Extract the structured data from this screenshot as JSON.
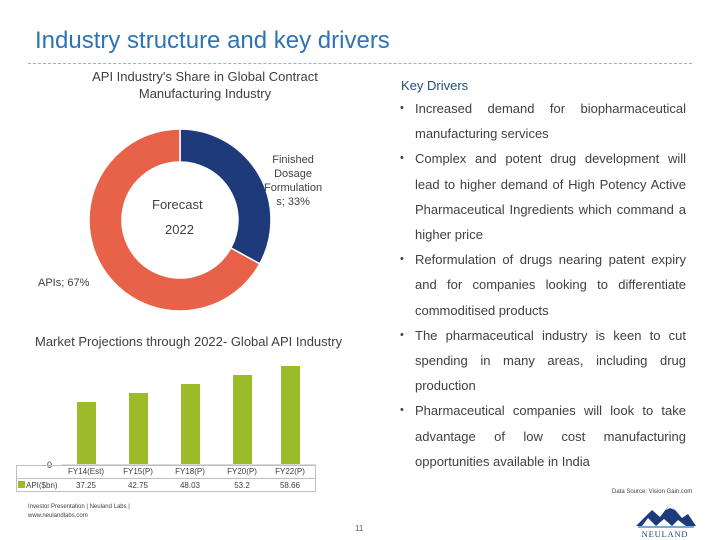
{
  "slide": {
    "title": "Industry structure and key drivers",
    "page_number": "11"
  },
  "donut": {
    "heading_line1": "API Industry's Share in Global Contract",
    "heading_line2": "Manufacturing Industry",
    "center_line1": "Forecast",
    "center_line2": "2022",
    "colors": {
      "finished_dosage": "#1f3a7a",
      "apis": "#e8624a"
    }
  },
  "key_drivers": {
    "heading": "Key Drivers",
    "items": [
      "Increased demand for biopharmaceutical manufacturing services",
      "Complex and potent drug development will lead to higher demand of High Potency Active Pharmaceutical Ingredients which command a higher price",
      "Reformulation of drugs nearing patent expiry and for companies looking to differentiate commoditised products",
      "The pharmaceutical industry is keen to cut spending in many areas, including drug production",
      "Pharmaceutical companies will look to take advantage of low cost manufacturing opportunities available in India"
    ]
  },
  "bar_section": {
    "heading": "Market Projections through 2022- Global API Industry",
    "zero_label": "0"
  },
  "chart_data": [
    {
      "type": "pie",
      "donut": true,
      "categories": [
        "Finished Dosage Formulations",
        "APIs"
      ],
      "values": [
        33,
        67
      ],
      "labels": [
        "Finished Dosage Formulations; 33%",
        "APIs; 67%"
      ],
      "label_lines": [
        [
          "Finished",
          "Dosage",
          "Formulation",
          "s; 33%"
        ],
        [
          "APIs; 67%"
        ]
      ],
      "colors": [
        "#1f3a7a",
        "#e8624a"
      ]
    },
    {
      "type": "bar",
      "categories": [
        "FY14(Est)",
        "FY15(P)",
        "FY18(P)",
        "FY20(P)",
        "FY22(P)"
      ],
      "series": [
        {
          "name": "API($bn)",
          "values": [
            37.25,
            42.75,
            48.03,
            53.2,
            58.66
          ]
        }
      ],
      "value_labels": [
        "37.25",
        "42.75",
        "48.03",
        "53.2",
        "58.66"
      ],
      "ylim": [
        0,
        60
      ],
      "color": "#9bbb2b",
      "grid": false
    }
  ],
  "footer": {
    "source": "Data Source: Vision Gain.com",
    "line1": "Investor Presentation | Neuland Labs |",
    "line2": "www.neulandlabs.com"
  },
  "logo": {
    "text": "NEULAND",
    "colors": {
      "peak": "#1f3a7a",
      "accent": "#4a90c8"
    }
  }
}
